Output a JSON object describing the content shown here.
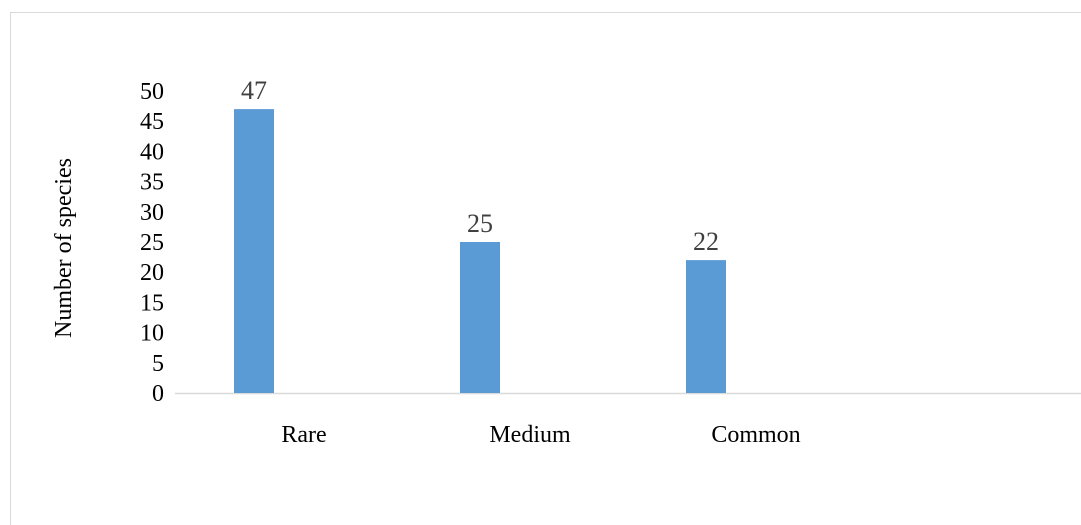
{
  "chart_data": {
    "type": "bar",
    "categories": [
      "Rare",
      "Medium",
      "Common"
    ],
    "values": [
      47,
      25,
      22
    ],
    "title": "",
    "xlabel": "",
    "ylabel": "Number of species",
    "ylim": [
      0,
      50
    ],
    "yticks": [
      0,
      5,
      10,
      15,
      20,
      25,
      30,
      35,
      40,
      45,
      50
    ],
    "grid": false,
    "legend": "none",
    "bar_color": "#5b9bd5",
    "data_labels": true
  }
}
